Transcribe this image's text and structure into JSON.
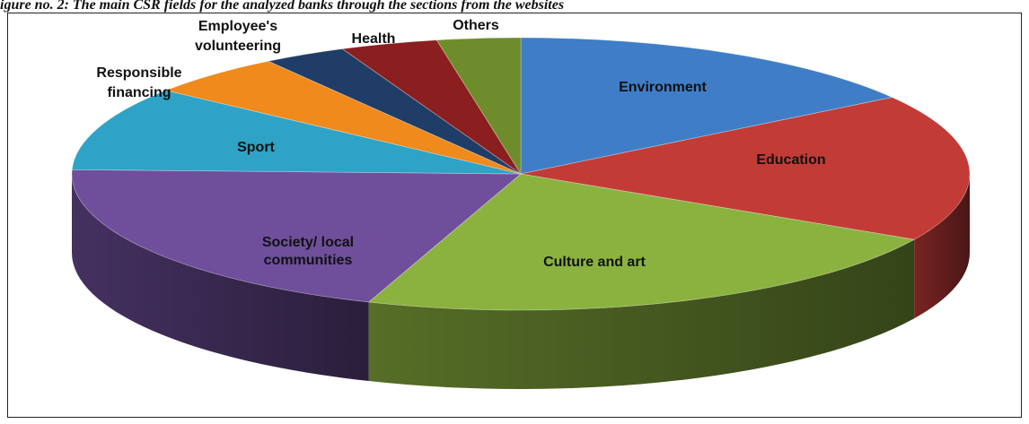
{
  "caption": "igure no. 2: The main CSR fields for the analyzed banks through the sections from the websites",
  "chart_data": {
    "type": "pie",
    "title": "",
    "three_d": true,
    "slices": [
      {
        "label": "Environment",
        "value": 15.5,
        "color": "#3f7ec7"
      },
      {
        "label": "Education",
        "value": 17.5,
        "color": "#c23b37"
      },
      {
        "label": "Culture and art",
        "value": 22.5,
        "color": "#8bb23f"
      },
      {
        "label": "Society/ local communities",
        "value": 20,
        "color": "#6f4f9c"
      },
      {
        "label": "Sport",
        "value": 10,
        "color": "#2ea3c6"
      },
      {
        "label": "Responsible financing",
        "value": 5,
        "color": "#f08a1c"
      },
      {
        "label": "Employee's volunteering",
        "value": 3,
        "color": "#1f3d66"
      },
      {
        "label": "Health",
        "value": 3.5,
        "color": "#8b1e1e"
      },
      {
        "label": "Others",
        "value": 3,
        "color": "#6e8c2c"
      }
    ]
  }
}
